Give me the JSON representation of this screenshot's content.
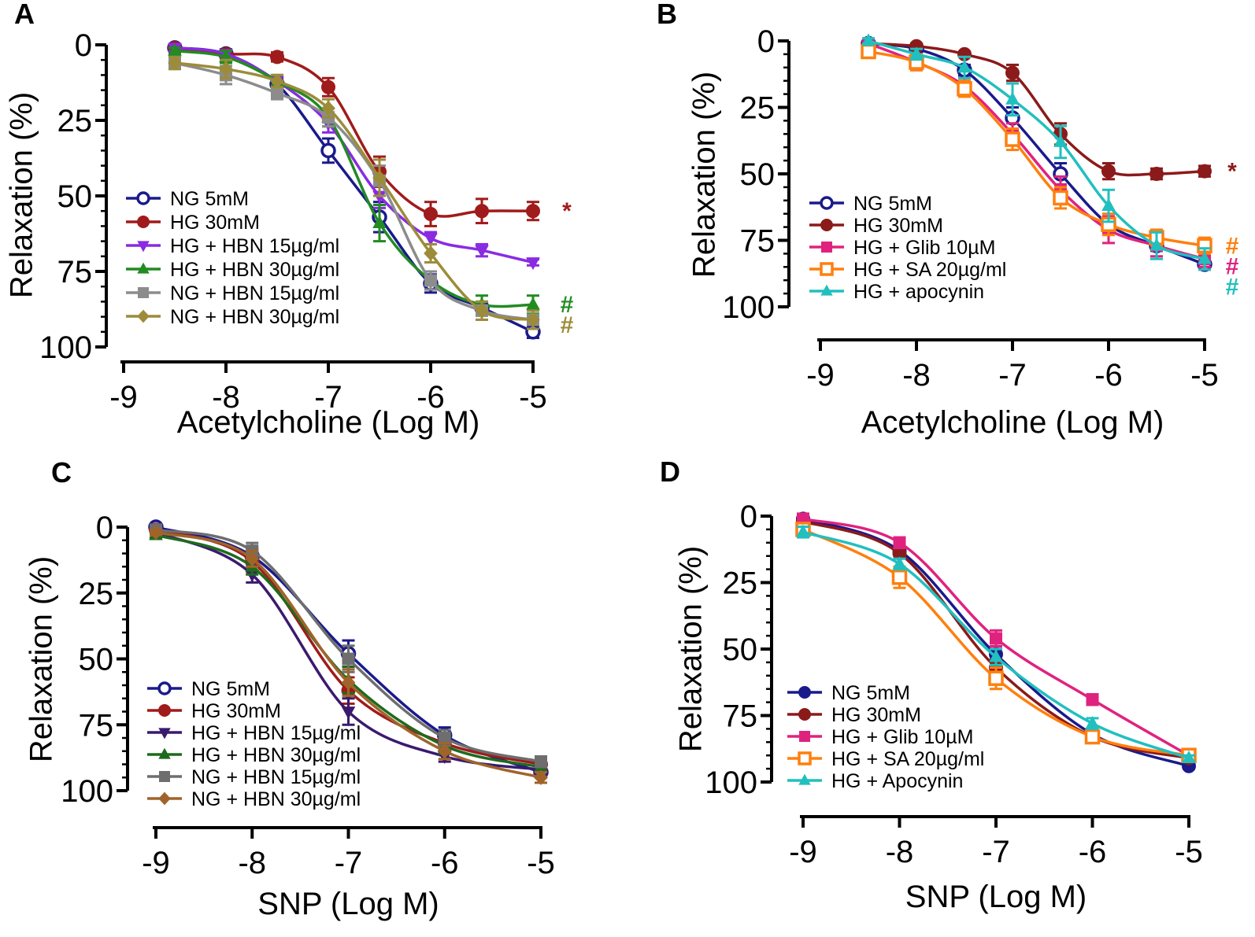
{
  "chart_data": [
    {
      "panel": "A",
      "type": "line",
      "xlabel": "Acetylcholine (Log M)",
      "ylabel": "Relaxation (%)",
      "xlim": [
        -9,
        -5
      ],
      "ylim": [
        0,
        100
      ],
      "x_ticks": [
        "-9",
        "-8",
        "-7",
        "-6",
        "-5"
      ],
      "y_ticks": [
        "0",
        "25",
        "50",
        "75",
        "100"
      ],
      "y_inverted": true,
      "x": [
        -8.5,
        -8,
        -7.5,
        -7,
        -6.5,
        -6,
        -5.5,
        -5
      ],
      "series": [
        {
          "name": "NG 5mM",
          "color": "#1a1a8c",
          "marker": "circle-open",
          "values": [
            1,
            3,
            13,
            35,
            57,
            79,
            87,
            95
          ],
          "errors": [
            1,
            1.5,
            2,
            4,
            5,
            3,
            2,
            2
          ]
        },
        {
          "name": "HG 30mM",
          "color": "#a01b1b",
          "marker": "circle",
          "values": [
            1,
            3,
            4,
            14,
            42,
            56,
            55,
            55
          ],
          "errors": [
            1,
            1,
            1.5,
            3,
            5,
            4,
            4,
            3
          ]
        },
        {
          "name": "HG + HBN 15µg/ml",
          "color": "#8a2be2",
          "marker": "triangle-down",
          "values": [
            1,
            3,
            12,
            26,
            50,
            64,
            68,
            72
          ],
          "errors": [
            1,
            1,
            2,
            3,
            4,
            2,
            2,
            1
          ]
        },
        {
          "name": "HG + HBN 30µg/ml",
          "color": "#228b22",
          "marker": "triangle",
          "values": [
            2,
            4,
            12,
            24,
            59,
            78,
            86,
            86
          ],
          "errors": [
            1,
            2,
            2,
            3,
            6,
            3,
            3,
            3
          ]
        },
        {
          "name": "NG + HBN 15µg/ml",
          "color": "#8c8c8c",
          "marker": "square",
          "values": [
            6,
            10,
            16,
            24,
            45,
            78,
            88,
            91
          ],
          "errors": [
            2,
            3,
            2,
            3,
            5,
            3,
            3,
            3
          ]
        },
        {
          "name": "NG + HBN 30µg/ml",
          "color": "#9c8c3a",
          "marker": "diamond",
          "values": [
            6,
            8,
            12,
            21,
            44,
            69,
            88,
            91
          ],
          "errors": [
            2,
            3,
            2,
            3,
            6,
            3,
            3,
            3
          ]
        }
      ],
      "annotations": [
        {
          "text": "*",
          "series": 1,
          "color": "#a01b1b"
        },
        {
          "text": "#",
          "series": 3,
          "color": "#228b22"
        },
        {
          "text": "#",
          "series": 5,
          "color": "#9c8c3a"
        }
      ]
    },
    {
      "panel": "B",
      "type": "line",
      "xlabel": "Acetylcholine (Log M)",
      "ylabel": "Relaxation (%)",
      "xlim": [
        -9,
        -5
      ],
      "ylim": [
        0,
        100
      ],
      "x_ticks": [
        "-9",
        "-8",
        "-7",
        "-6",
        "-5"
      ],
      "y_ticks": [
        "0",
        "25",
        "50",
        "75",
        "100"
      ],
      "y_inverted": true,
      "x": [
        -8.5,
        -8,
        -7.5,
        -7,
        -6.5,
        -6,
        -5.5,
        -5
      ],
      "series": [
        {
          "name": "NG 5mM",
          "color": "#1a1a8c",
          "marker": "circle-open",
          "values": [
            1,
            3,
            11,
            29,
            50,
            69,
            77,
            84
          ],
          "errors": [
            1,
            1,
            2,
            4,
            4,
            3,
            2,
            2
          ]
        },
        {
          "name": "HG 30mM",
          "color": "#8b1a1a",
          "marker": "circle",
          "values": [
            1,
            2,
            5,
            12,
            35,
            49,
            50,
            49
          ],
          "errors": [
            1,
            1,
            1,
            3,
            4,
            3,
            2,
            2
          ]
        },
        {
          "name": "HG + Glib 10µM",
          "color": "#e0227f",
          "marker": "square",
          "values": [
            1,
            8,
            17,
            35,
            56,
            71,
            77,
            82
          ],
          "errors": [
            1,
            3,
            3,
            4,
            5,
            5,
            4,
            3
          ]
        },
        {
          "name": "HG + SA 20µg/ml",
          "color": "#ff7f0e",
          "marker": "square-open",
          "values": [
            4,
            8,
            18,
            37,
            59,
            69,
            74,
            77
          ],
          "errors": [
            2,
            3,
            3,
            4,
            4,
            4,
            3,
            3
          ]
        },
        {
          "name": "HG + apocynin",
          "color": "#22bfbf",
          "marker": "triangle",
          "values": [
            0,
            5,
            10,
            22,
            38,
            62,
            77,
            82
          ],
          "errors": [
            1,
            2,
            4,
            6,
            6,
            6,
            5,
            4
          ]
        }
      ],
      "annotations": [
        {
          "text": "*",
          "series": 1,
          "color": "#8b1a1a"
        },
        {
          "text": "#",
          "series": 3,
          "color": "#ff7f0e"
        },
        {
          "text": "#",
          "series": 2,
          "color": "#e0227f"
        },
        {
          "text": "#",
          "series": 4,
          "color": "#22bfbf"
        }
      ]
    },
    {
      "panel": "C",
      "type": "line",
      "xlabel": "SNP (Log M)",
      "ylabel": "Relaxation (%)",
      "xlim": [
        -9,
        -5
      ],
      "ylim": [
        0,
        100
      ],
      "x_ticks": [
        "-9",
        "-8",
        "-7",
        "-6",
        "-5"
      ],
      "y_ticks": [
        "0",
        "25",
        "50",
        "75",
        "100"
      ],
      "y_inverted": true,
      "x": [
        -9,
        -8,
        -7,
        -6,
        -5
      ],
      "series": [
        {
          "name": "NG 5mM",
          "color": "#1a1a8c",
          "marker": "circle-open",
          "values": [
            0,
            11,
            48,
            79,
            93
          ],
          "errors": [
            1,
            3,
            5,
            3,
            2
          ]
        },
        {
          "name": "HG 30mM",
          "color": "#a01b1b",
          "marker": "circle",
          "values": [
            1,
            13,
            62,
            82,
            90
          ],
          "errors": [
            1,
            4,
            5,
            3,
            2
          ]
        },
        {
          "name": "HG + HBN 15µg/ml",
          "color": "#3a1a6e",
          "marker": "triangle-down",
          "values": [
            2,
            18,
            70,
            87,
            92
          ],
          "errors": [
            1,
            3,
            5,
            2,
            2
          ]
        },
        {
          "name": "HG + HBN 30µg/ml",
          "color": "#1e6b1e",
          "marker": "triangle",
          "values": [
            3,
            15,
            58,
            83,
            91
          ],
          "errors": [
            1,
            3,
            5,
            3,
            2
          ]
        },
        {
          "name": "NG + HBN 15µg/ml",
          "color": "#6e6e6e",
          "marker": "square",
          "values": [
            1,
            9,
            50,
            80,
            89
          ],
          "errors": [
            1,
            3,
            5,
            3,
            2
          ]
        },
        {
          "name": "NG + HBN 30µg/ml",
          "color": "#a0642a",
          "marker": "diamond",
          "values": [
            2,
            12,
            59,
            85,
            95
          ],
          "errors": [
            1,
            3,
            5,
            3,
            2
          ]
        }
      ]
    },
    {
      "panel": "D",
      "type": "line",
      "xlabel": "SNP (Log M)",
      "ylabel": "Relaxation (%)",
      "xlim": [
        -9,
        -5
      ],
      "ylim": [
        0,
        100
      ],
      "x_ticks": [
        "-9",
        "-8",
        "-7",
        "-6",
        "-5"
      ],
      "y_ticks": [
        "0",
        "25",
        "50",
        "75",
        "100"
      ],
      "y_inverted": true,
      "x": [
        -9,
        -8,
        -7,
        -6,
        -5
      ],
      "series": [
        {
          "name": "NG 5mM",
          "color": "#1a1a8c",
          "marker": "circle",
          "values": [
            1,
            13,
            52,
            82,
            94
          ],
          "errors": [
            1,
            2,
            3,
            2,
            1
          ]
        },
        {
          "name": "HG 30mM",
          "color": "#8b1a1a",
          "marker": "circle",
          "values": [
            2,
            14,
            57,
            83,
            91
          ],
          "errors": [
            1,
            2,
            3,
            2,
            1
          ]
        },
        {
          "name": "HG + Glib 10µM",
          "color": "#e0227f",
          "marker": "square",
          "values": [
            1,
            10,
            46,
            69,
            90
          ],
          "errors": [
            1,
            2,
            3,
            2,
            1
          ]
        },
        {
          "name": "HG + SA 20µg/ml",
          "color": "#ff7f0e",
          "marker": "square-open",
          "values": [
            5,
            23,
            61,
            83,
            90
          ],
          "errors": [
            2,
            4,
            4,
            2,
            1
          ]
        },
        {
          "name": "HG + Apocynin",
          "color": "#22bfbf",
          "marker": "triangle",
          "values": [
            6,
            18,
            53,
            78,
            91
          ],
          "errors": [
            2,
            2,
            3,
            2,
            1
          ]
        }
      ]
    }
  ]
}
